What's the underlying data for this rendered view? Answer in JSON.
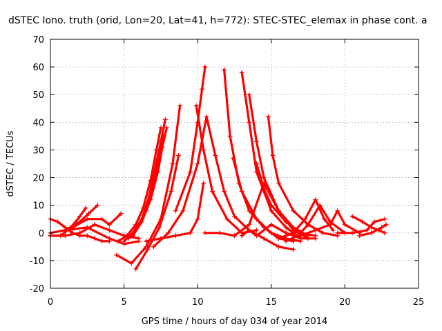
{
  "chart_data": {
    "type": "line",
    "title": "dSTEC Iono. truth (orid, Lon=20, Lat=41, h=772): STEC-STEC_elemax in phase cont. a",
    "xlabel": "GPS time / hours of day 034 of year 2014",
    "ylabel": "dSTEC  / TECUs",
    "xlim": [
      0,
      25
    ],
    "ylim": [
      -20,
      70
    ],
    "xticks": [
      0,
      5,
      10,
      15,
      20,
      25
    ],
    "yticks": [
      -20,
      -10,
      0,
      10,
      20,
      30,
      40,
      50,
      60,
      70
    ],
    "grid": true,
    "legend": "none",
    "color": "#ff0000",
    "series": [
      {
        "x": [
          0.0,
          0.5,
          1.0,
          1.5,
          2.0,
          2.5,
          3.0,
          3.5,
          4.0
        ],
        "y": [
          5,
          4,
          2,
          0,
          -1,
          -1,
          -2,
          -3,
          -3
        ]
      },
      {
        "x": [
          0.0,
          0.7,
          1.4,
          2.0,
          2.4
        ],
        "y": [
          -1,
          -1,
          2,
          6,
          9
        ]
      },
      {
        "x": [
          0.0,
          1.0,
          2.0,
          2.6,
          3.2
        ],
        "y": [
          0,
          1,
          4,
          7,
          10
        ]
      },
      {
        "x": [
          0.0,
          1.0,
          2.0,
          3.0,
          4.0,
          5.0,
          6.0
        ],
        "y": [
          -1,
          -1,
          0,
          3,
          1,
          -1,
          -2
        ]
      },
      {
        "x": [
          1.5,
          2.5,
          3.5,
          4.0,
          4.8
        ],
        "y": [
          2,
          5,
          5,
          3,
          7
        ]
      },
      {
        "x": [
          1.0,
          2.5,
          4.0,
          5.0,
          6.0
        ],
        "y": [
          1,
          2,
          -2,
          -4,
          -3
        ]
      },
      {
        "x": [
          4.6,
          5.2,
          5.8,
          6.3,
          6.8,
          7.2,
          7.5
        ],
        "y": [
          -3,
          -1,
          3,
          9,
          19,
          30,
          38
        ]
      },
      {
        "x": [
          5.0,
          5.6,
          6.2,
          6.7,
          7.1,
          7.5,
          7.8
        ],
        "y": [
          -3,
          0,
          5,
          13,
          23,
          33,
          41
        ]
      },
      {
        "x": [
          5.3,
          5.9,
          6.5,
          7.0,
          7.4,
          7.7
        ],
        "y": [
          -2,
          2,
          8,
          18,
          28,
          35
        ]
      },
      {
        "x": [
          5.6,
          6.2,
          6.8,
          7.3,
          7.6,
          7.9
        ],
        "y": [
          -1,
          4,
          12,
          22,
          31,
          38
        ]
      },
      {
        "x": [
          4.5,
          5.5,
          6.5,
          7.5,
          8.3,
          8.8
        ],
        "y": [
          -8,
          -11,
          -5,
          5,
          25,
          46
        ]
      },
      {
        "x": [
          5.8,
          6.6,
          7.4,
          8.2,
          8.7
        ],
        "y": [
          -13,
          -6,
          2,
          15,
          28
        ]
      },
      {
        "x": [
          6.5,
          7.5,
          8.5,
          9.5,
          10.0,
          10.4
        ],
        "y": [
          -3,
          -2,
          -1,
          0,
          5,
          18
        ]
      },
      {
        "x": [
          7.0,
          8.0,
          9.0,
          10.0,
          10.6,
          11.2,
          11.8,
          12.5,
          13.5,
          14.5,
          15.5,
          16.5
        ],
        "y": [
          -5,
          0,
          8,
          25,
          42,
          28,
          15,
          6,
          1,
          -2,
          -5,
          -6
        ]
      },
      {
        "x": [
          8.5,
          9.5,
          10.0,
          10.3,
          10.5
        ],
        "y": [
          8,
          22,
          40,
          52,
          60
        ]
      },
      {
        "x": [
          9.9,
          10.4,
          11.0,
          12.0,
          13.0,
          14.0
        ],
        "y": [
          46,
          30,
          15,
          5,
          0,
          1
        ]
      },
      {
        "x": [
          10.5,
          11.5,
          12.5,
          13.5,
          14.5,
          15.5,
          16.5,
          17.5
        ],
        "y": [
          0,
          0,
          -1,
          3,
          18,
          8,
          1,
          -2
        ]
      },
      {
        "x": [
          11.8,
          12.2,
          12.8,
          13.5,
          14.5,
          15.5,
          16.5
        ],
        "y": [
          59,
          35,
          18,
          8,
          2,
          -2,
          -3
        ]
      },
      {
        "x": [
          12.4,
          13.0,
          14.0,
          15.0,
          16.0,
          17.0
        ],
        "y": [
          27,
          15,
          5,
          0,
          -2,
          -3
        ]
      },
      {
        "x": [
          13.0,
          13.5,
          14.0,
          15.0,
          16.0,
          17.0
        ],
        "y": [
          58,
          40,
          22,
          8,
          2,
          -2
        ]
      },
      {
        "x": [
          13.5,
          14.0,
          14.5,
          15.5,
          16.5,
          17.5
        ],
        "y": [
          50,
          33,
          20,
          8,
          2,
          -1
        ]
      },
      {
        "x": [
          14.0,
          14.5,
          15.0,
          16.0,
          17.0,
          18.0
        ],
        "y": [
          25,
          16,
          10,
          4,
          0,
          -1
        ]
      },
      {
        "x": [
          14.8,
          15.1,
          15.5,
          16.5,
          17.5,
          18.5,
          19.5
        ],
        "y": [
          42,
          28,
          18,
          8,
          3,
          0,
          -1
        ]
      },
      {
        "x": [
          13.0,
          13.5,
          14.0,
          15.0,
          16.0,
          17.0,
          18.0
        ],
        "y": [
          -1,
          1,
          -1,
          3,
          0,
          -2,
          -2
        ]
      },
      {
        "x": [
          15.5,
          16.5,
          17.3,
          18.0,
          18.6,
          19.2
        ],
        "y": [
          -2,
          0,
          5,
          12,
          5,
          1
        ]
      },
      {
        "x": [
          16.0,
          16.8,
          17.5,
          18.3,
          19.0,
          20.0
        ],
        "y": [
          -3,
          -1,
          3,
          10,
          4,
          0
        ]
      },
      {
        "x": [
          17.0,
          18.0,
          19.0,
          19.5,
          20.0,
          21.0
        ],
        "y": [
          -1,
          1,
          3,
          8,
          3,
          0
        ]
      },
      {
        "x": [
          19.5,
          20.5,
          21.5,
          22.0,
          22.7
        ],
        "y": [
          0,
          0,
          1,
          4,
          5
        ]
      },
      {
        "x": [
          20.5,
          21.2,
          21.8,
          22.3,
          22.7
        ],
        "y": [
          6,
          4,
          2,
          1,
          0
        ]
      },
      {
        "x": [
          21.0,
          21.8,
          22.5,
          22.8
        ],
        "y": [
          -1,
          0,
          2,
          3
        ]
      }
    ]
  }
}
